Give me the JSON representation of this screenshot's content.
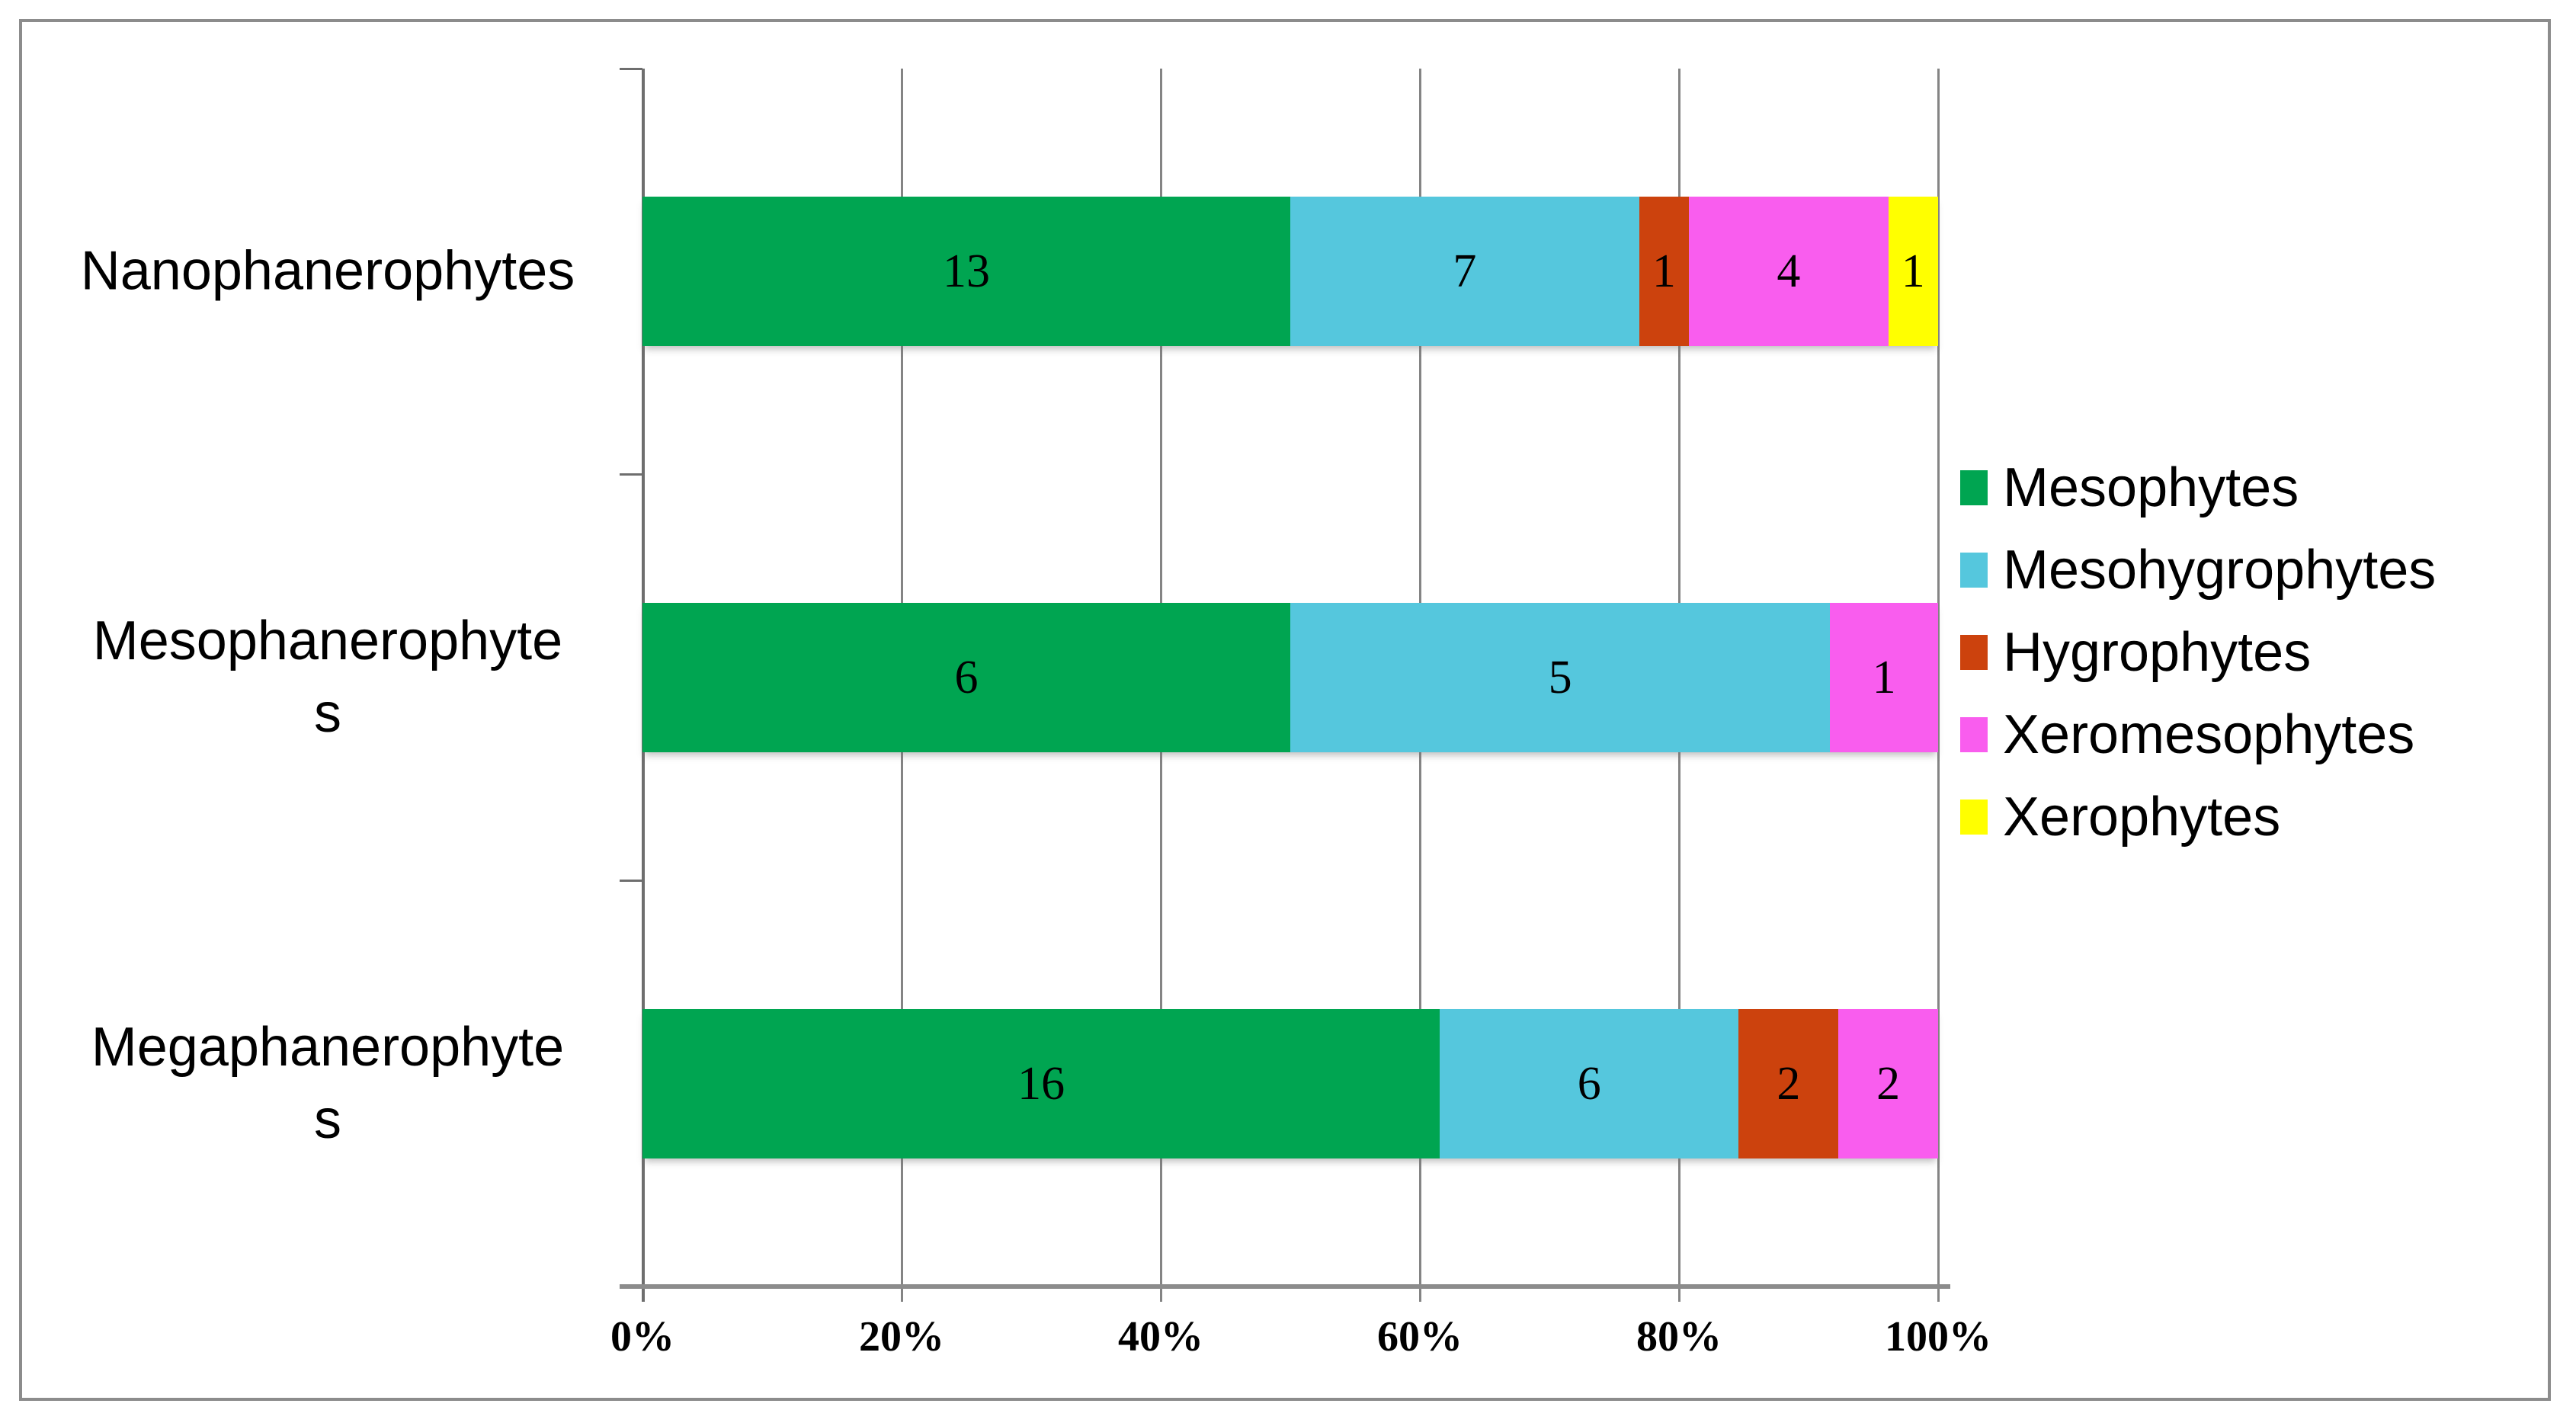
{
  "chart_data": {
    "type": "bar",
    "subtype": "horizontal-100pct-stacked",
    "title": "",
    "xlabel": "",
    "ylabel": "",
    "xlim": [
      0,
      100
    ],
    "x_ticks": [
      "0%",
      "20%",
      "40%",
      "60%",
      "80%",
      "100%"
    ],
    "grid": true,
    "legend_position": "right",
    "categories": [
      "Nanophanerophytes",
      "Mesophanerophytes",
      "Megaphanerophytes"
    ],
    "category_label_lines": [
      [
        "Nanophanerophytes"
      ],
      [
        "Mesophanerophyte",
        "s"
      ],
      [
        "Megaphanerophyte",
        "s"
      ]
    ],
    "series": [
      {
        "name": "Mesophytes",
        "color": "#00A551",
        "values": [
          13,
          6,
          16
        ]
      },
      {
        "name": "Mesohygrophytes",
        "color": "#55C7DD",
        "values": [
          7,
          5,
          6
        ]
      },
      {
        "name": "Hygrophytes",
        "color": "#CC420D",
        "values": [
          1,
          0,
          2
        ]
      },
      {
        "name": "Xeromesophytes",
        "color": "#F95DEE",
        "values": [
          4,
          1,
          2
        ]
      },
      {
        "name": "Xerophytes",
        "color": "#FFFF00",
        "values": [
          1,
          0,
          0
        ]
      }
    ],
    "colors": {
      "axis_gray": "#8C8C8C",
      "gridline_gray": "#848484",
      "label_black": "#000000"
    }
  }
}
